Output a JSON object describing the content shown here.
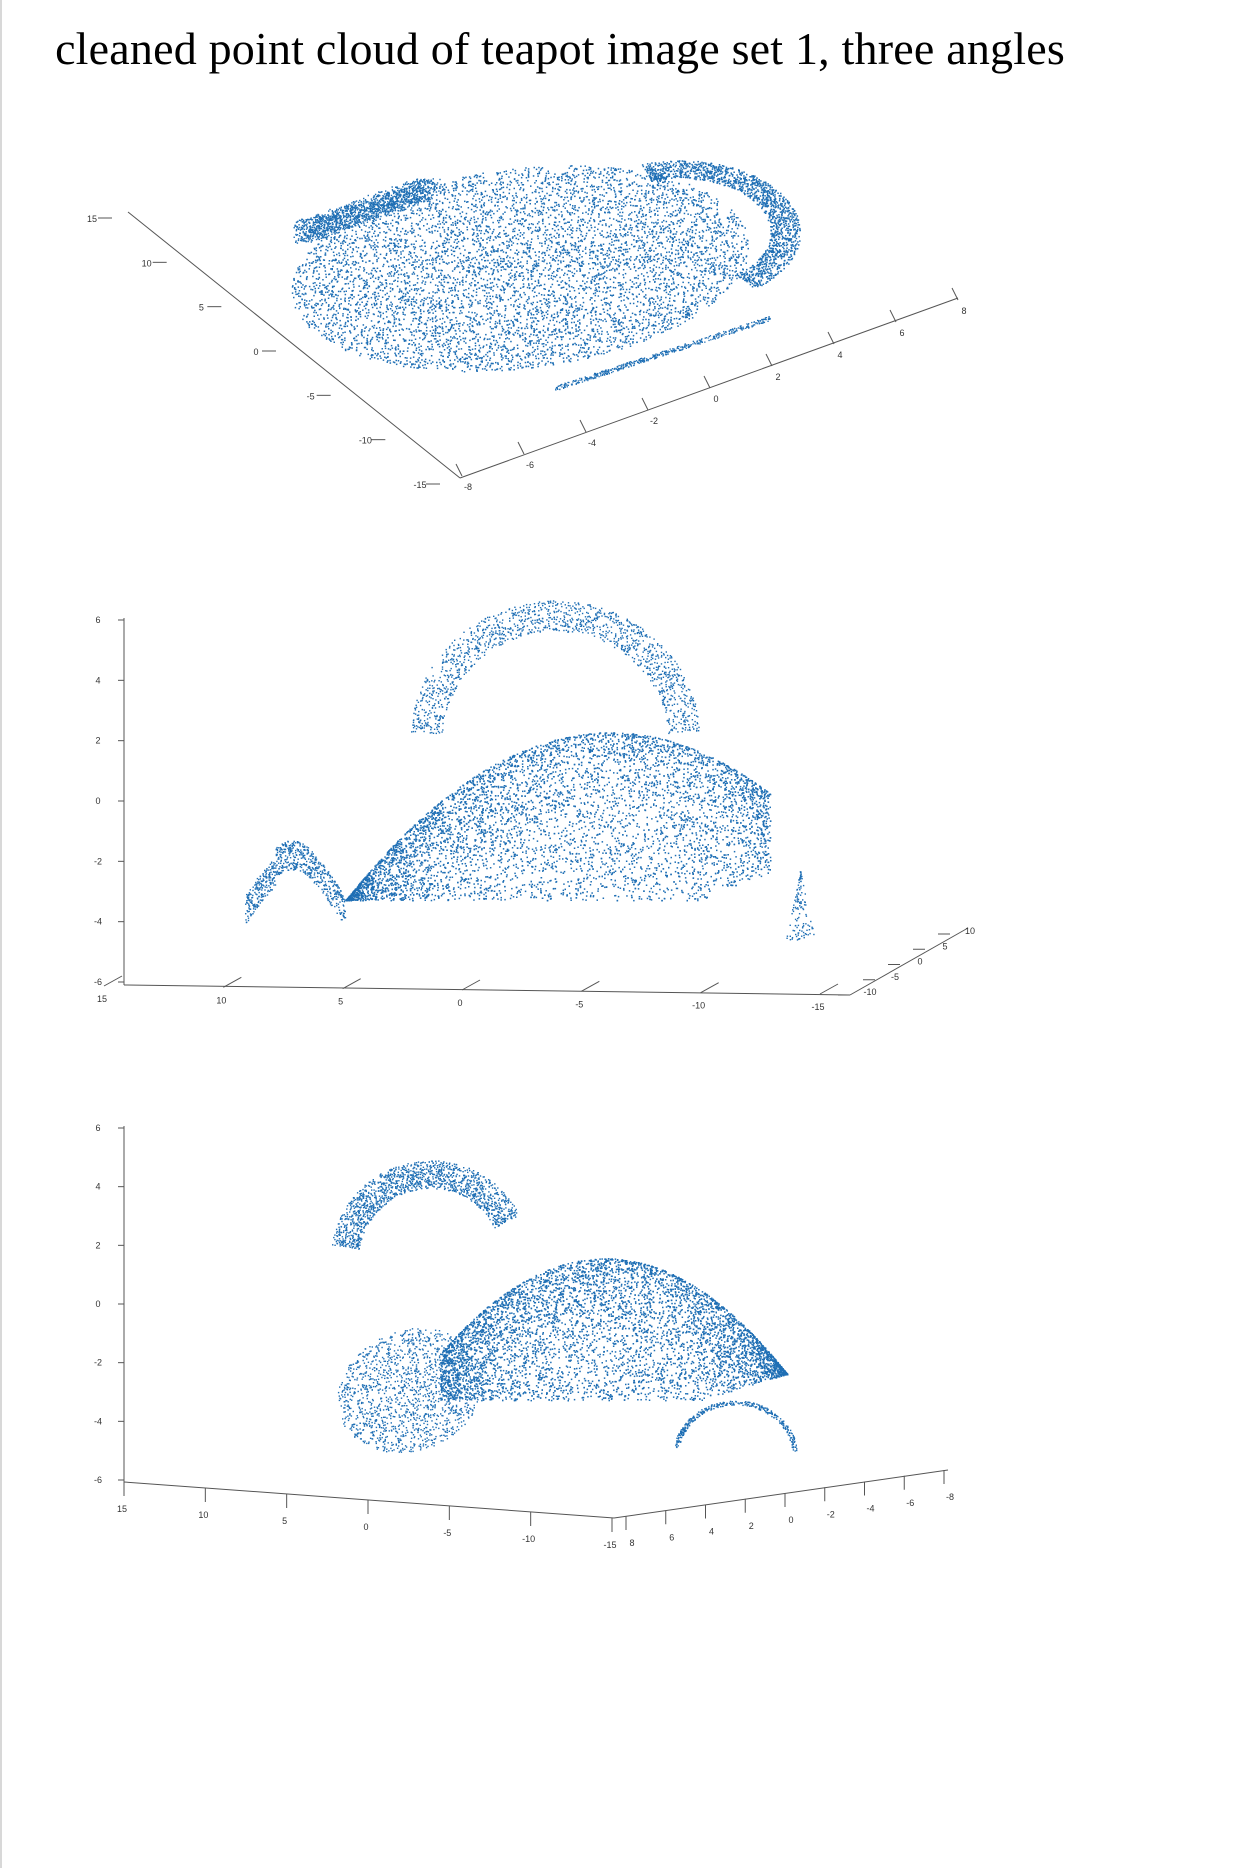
{
  "title": "cleaned point cloud of teapot image set 1, three angles",
  "colors": {
    "points": "#1f6fb5",
    "axis": "#555555",
    "tick_text": "#333333"
  },
  "chart_data": [
    {
      "type": "scatter3d",
      "view": "top",
      "axis_a_ticks": [
        "15",
        "10",
        "5",
        "0",
        "-5",
        "-10",
        "-15"
      ],
      "axis_b_ticks": [
        "-8",
        "-6",
        "-4",
        "-2",
        "0",
        "2",
        "4",
        "6",
        "8"
      ],
      "axis_a_range": [
        -15,
        15
      ],
      "axis_b_range": [
        -8,
        8
      ]
    },
    {
      "type": "scatter3d",
      "view": "front",
      "z_ticks": [
        "6",
        "4",
        "2",
        "0",
        "-2",
        "-4",
        "-6"
      ],
      "x_ticks": [
        "15",
        "10",
        "5",
        "0",
        "-5",
        "-10",
        "-15"
      ],
      "y_ticks": [
        "-10",
        "-5",
        "0",
        "5",
        "10"
      ],
      "z_range": [
        -6,
        6
      ],
      "x_range": [
        -15,
        15
      ],
      "y_range": [
        -10,
        10
      ]
    },
    {
      "type": "scatter3d",
      "view": "oblique",
      "z_ticks": [
        "6",
        "4",
        "2",
        "0",
        "-2",
        "-4",
        "-6"
      ],
      "x_ticks": [
        "15",
        "10",
        "5",
        "0",
        "-5",
        "-10",
        "-15"
      ],
      "y_ticks": [
        "8",
        "6",
        "4",
        "2",
        "0",
        "-2",
        "-4",
        "-6",
        "-8"
      ],
      "z_range": [
        -6,
        6
      ],
      "x_range": [
        -15,
        15
      ],
      "y_range": [
        -8,
        8
      ]
    }
  ]
}
